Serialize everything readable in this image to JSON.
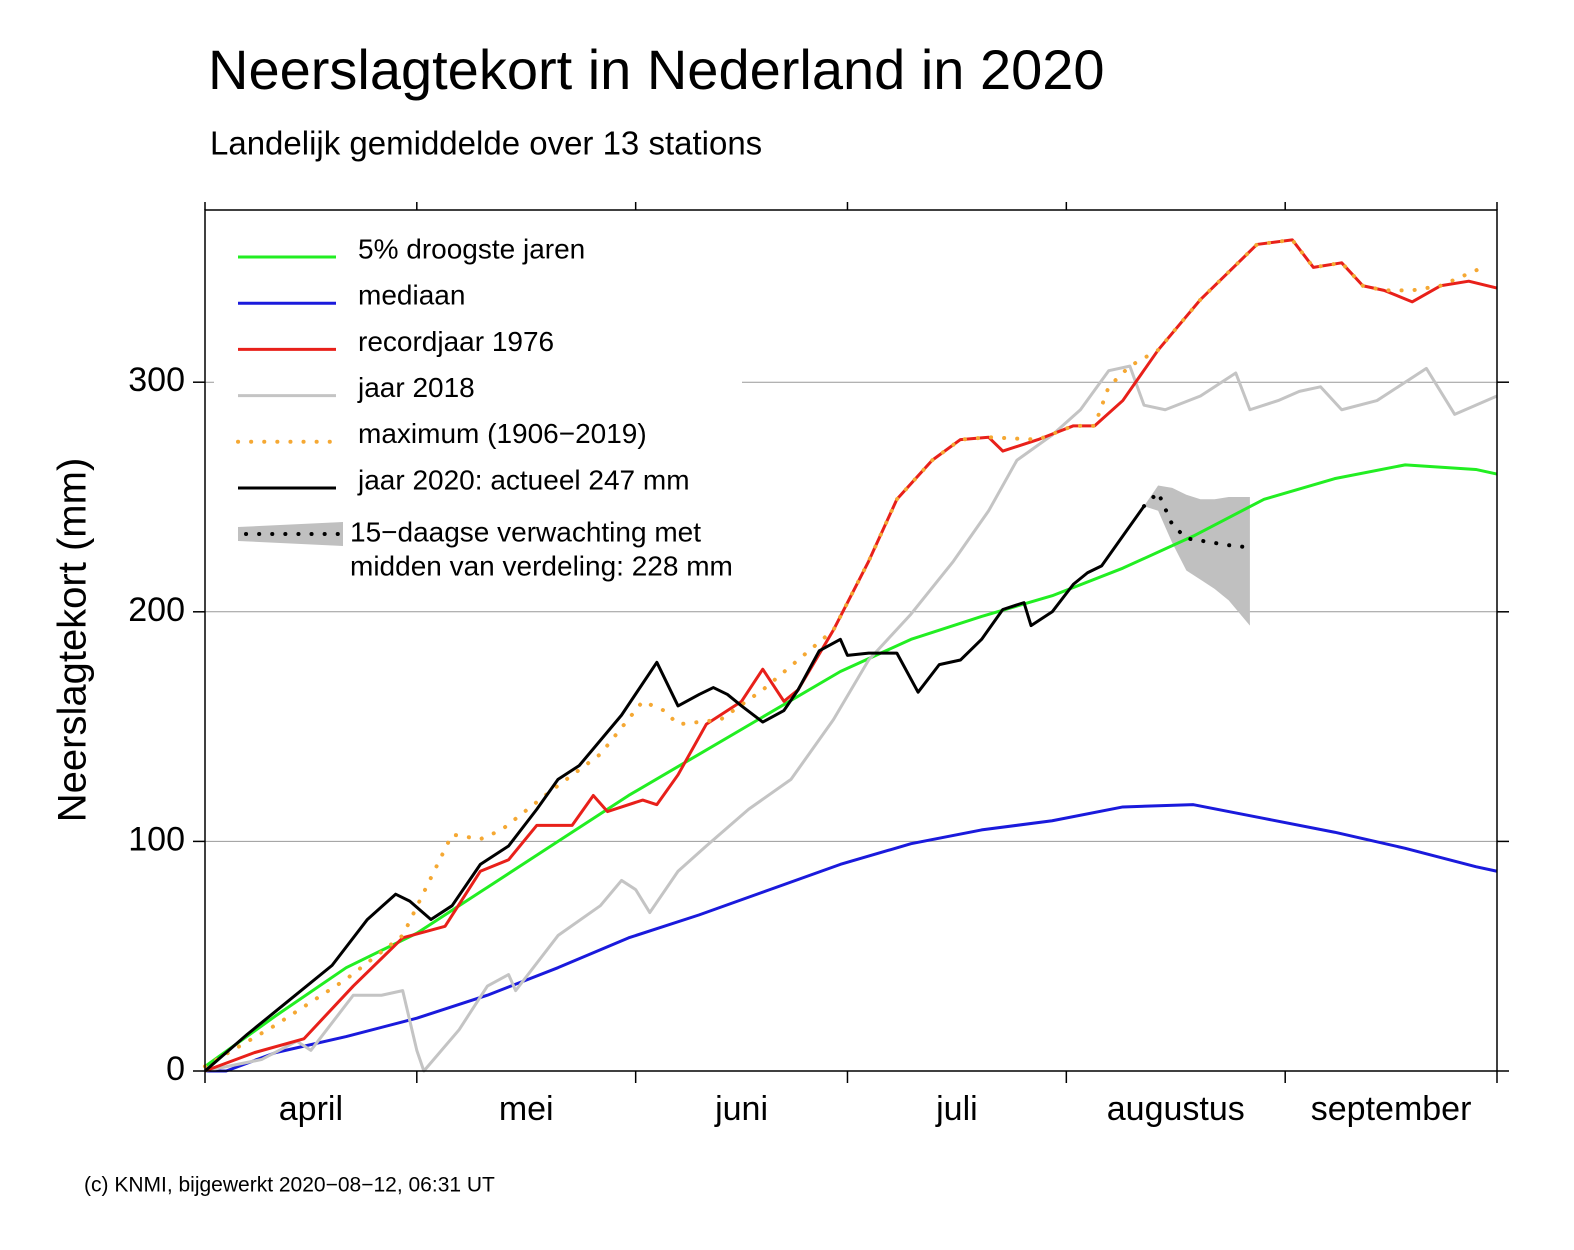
{
  "chart_data": {
    "type": "line",
    "title": "Neerslagtekort in Nederland in 2020",
    "subtitle": "Landelijk gemiddelde over 13 stations",
    "y_label": "Neerslagtekort (mm)",
    "footer": "(c) KNMI, bijgewerkt 2020−08−12, 06:31 UT",
    "months": [
      "april",
      "mei",
      "juni",
      "juli",
      "augustus",
      "september"
    ],
    "xlim": [
      0,
      183
    ],
    "xticks": [
      0,
      30,
      61,
      91,
      122,
      153,
      183
    ],
    "ylim": [
      0,
      375
    ],
    "yticks": [
      0,
      100,
      200,
      300
    ],
    "grid": true,
    "legend": "upper left",
    "series": [
      {
        "name": "5% droogste jaren",
        "color": "#22ee22",
        "style": "solid",
        "x": [
          0,
          10,
          20,
          30,
          40,
          50,
          60,
          70,
          80,
          90,
          100,
          110,
          120,
          130,
          140,
          150,
          160,
          170,
          180,
          183
        ],
        "values": [
          2,
          24,
          45,
          60,
          80,
          100,
          120,
          138,
          156,
          174,
          188,
          198,
          207,
          219,
          233,
          249,
          258,
          264,
          262,
          260
        ]
      },
      {
        "name": "mediaan",
        "color": "#1a1adc",
        "style": "solid",
        "x": [
          0,
          3,
          10,
          20,
          30,
          40,
          50,
          60,
          70,
          80,
          90,
          100,
          110,
          120,
          130,
          140,
          150,
          160,
          170,
          180,
          183
        ],
        "values": [
          0,
          0,
          8,
          15,
          23,
          33,
          45,
          58,
          68,
          79,
          90,
          99,
          105,
          109,
          115,
          116,
          110,
          104,
          97,
          89,
          87
        ]
      },
      {
        "name": "recordjaar 1976",
        "color": "#e8201a",
        "style": "solid",
        "x": [
          0,
          7,
          14,
          21,
          28,
          34,
          39,
          43,
          47,
          52,
          55,
          57,
          62,
          64,
          67,
          71,
          76,
          79,
          82,
          84,
          89,
          94,
          98,
          103,
          107,
          111,
          113,
          118,
          123,
          126,
          130,
          135,
          141,
          149,
          154,
          157,
          161,
          164,
          167,
          171,
          175,
          179,
          183
        ],
        "values": [
          0,
          8,
          14,
          37,
          58,
          63,
          87,
          92,
          107,
          107,
          120,
          113,
          118,
          116,
          129,
          151,
          161,
          175,
          161,
          166,
          192,
          222,
          249,
          266,
          275,
          276,
          270,
          275,
          281,
          281,
          292,
          314,
          336,
          360,
          362,
          350,
          352,
          342,
          340,
          335,
          342,
          344,
          341
        ]
      },
      {
        "name": "jaar 2018",
        "color": "#c4c4c4",
        "style": "solid",
        "x": [
          0,
          8,
          13,
          15,
          21,
          25,
          28,
          30,
          31,
          36,
          40,
          43,
          44,
          50,
          56,
          59,
          61,
          63,
          67,
          71,
          77,
          83,
          89,
          94,
          100,
          106,
          111,
          115,
          120,
          124,
          128,
          131,
          133,
          136,
          141,
          146,
          148,
          152,
          155,
          158,
          161,
          166,
          173,
          177,
          183
        ],
        "values": [
          0,
          5,
          13,
          9,
          33,
          33,
          35,
          9,
          0,
          18,
          37,
          42,
          35,
          59,
          72,
          83,
          79,
          69,
          87,
          98,
          114,
          127,
          153,
          179,
          199,
          222,
          244,
          266,
          277,
          288,
          305,
          307,
          290,
          288,
          294,
          304,
          288,
          292,
          296,
          298,
          288,
          292,
          306,
          286,
          294
        ]
      },
      {
        "name": "maximum (1906−2019)",
        "color": "#f5a833",
        "style": "dotted",
        "x": [
          0,
          10,
          20,
          28,
          35,
          39,
          42,
          49,
          56,
          62,
          65,
          67,
          73,
          79,
          84,
          89,
          94,
          98,
          103,
          107,
          111,
          118,
          123,
          126,
          128,
          131,
          135,
          141,
          149,
          154,
          157,
          161,
          164,
          167,
          171,
          175,
          181
        ],
        "values": [
          2,
          20,
          40,
          59,
          103,
          101,
          105,
          122,
          138,
          161,
          157,
          151,
          153,
          166,
          179,
          192,
          222,
          249,
          266,
          275,
          276,
          275,
          281,
          281,
          298,
          307,
          314,
          336,
          360,
          362,
          350,
          352,
          342,
          340,
          340,
          342,
          350
        ]
      },
      {
        "name": "jaar 2020: actueel 247 mm",
        "color": "#000000",
        "style": "solid",
        "x": [
          0,
          6,
          12,
          18,
          23,
          27,
          29,
          32,
          35,
          39,
          43,
          47,
          50,
          53,
          59,
          64,
          67,
          70,
          72,
          74,
          76,
          79,
          82,
          84,
          87,
          90,
          91,
          94,
          98,
          101,
          104,
          107,
          110,
          113,
          116,
          117,
          120,
          123,
          125,
          127,
          130,
          133
        ],
        "values": [
          0,
          16,
          31,
          46,
          66,
          77,
          74,
          66,
          72,
          90,
          98,
          114,
          127,
          133,
          155,
          178,
          159,
          164,
          167,
          164,
          159,
          152,
          157,
          166,
          183,
          188,
          181,
          182,
          182,
          165,
          177,
          179,
          188,
          201,
          204,
          194,
          200,
          212,
          217,
          220,
          233,
          246
        ]
      }
    ],
    "forecast": {
      "name": [
        "15−daagse verwachting met",
        "midden van verdeling: 228 mm"
      ],
      "band_color": "#c0c0c0",
      "color": "#000000",
      "x": [
        133,
        135,
        137,
        139,
        141,
        143,
        145,
        148
      ],
      "lower": [
        246,
        244,
        230,
        218,
        214,
        210,
        205,
        194
      ],
      "upper": [
        246,
        255,
        254,
        251,
        249,
        249,
        250,
        250
      ],
      "values": [
        246,
        252,
        238,
        232,
        231,
        230,
        229,
        228
      ]
    }
  }
}
